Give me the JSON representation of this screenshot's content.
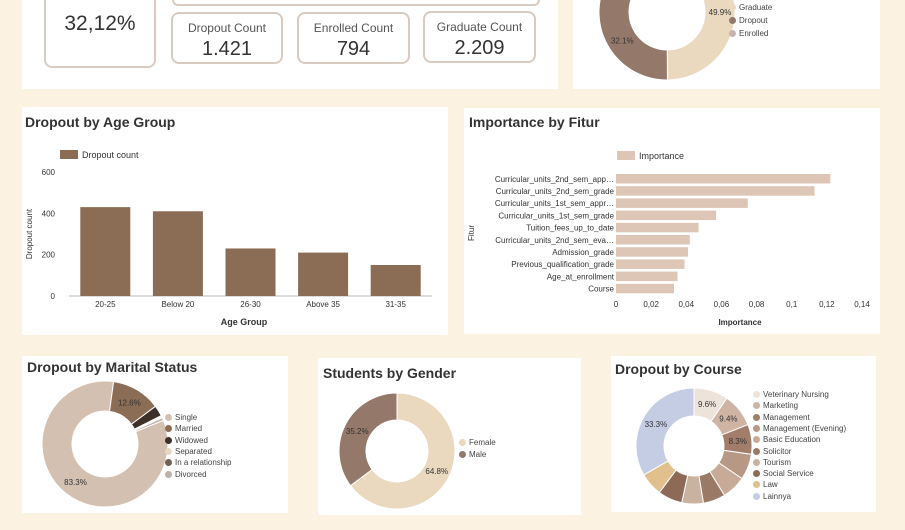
{
  "kpis": {
    "dropout_rate": "32,12%",
    "dropout_count": {
      "label": "Dropout Count",
      "value": "1.421"
    },
    "enrolled_count": {
      "label": "Enrolled Count",
      "value": "794"
    },
    "graduate_count": {
      "label": "Graduate Count",
      "value": "2.209"
    }
  },
  "chart_data": [
    {
      "type": "pie",
      "id": "status",
      "title": "",
      "labels": [
        "Graduate",
        "Dropout",
        "Enrolled"
      ],
      "values": [
        49.9,
        32.1,
        18.0
      ],
      "data_labels": [
        "49.9%",
        "32.1%",
        ""
      ],
      "colors": [
        "#ead8bf",
        "#947869",
        "#c7b4b0"
      ]
    },
    {
      "type": "bar",
      "id": "age",
      "title": "Dropout by Age Group",
      "legend": "Dropout count",
      "categories": [
        "20-25",
        "Below 20",
        "26-30",
        "Above 35",
        "31-35"
      ],
      "values": [
        430,
        410,
        230,
        210,
        150
      ],
      "xlabel": "Age Group",
      "ylabel": "Dropout count",
      "yticks": [
        "0",
        "200",
        "400",
        "600"
      ],
      "ylim": [
        0,
        600
      ],
      "color": "#8b6c55"
    },
    {
      "type": "bar",
      "id": "fitur",
      "orientation": "horizontal",
      "title": "Importance by Fitur",
      "legend": "Importance",
      "categories": [
        "Curricular_units_2nd_sem_app…",
        "Curricular_units_2nd_sem_grade",
        "Curricular_units_1st_sem_appr…",
        "Curricular_units_1st_sem_grade",
        "Tuition_fees_up_to_date",
        "Curricular_units_2nd_sem_eva…",
        "Admission_grade",
        "Previous_qualification_grade",
        "Age_at_enrollment",
        "Course"
      ],
      "values": [
        0.122,
        0.113,
        0.075,
        0.057,
        0.047,
        0.042,
        0.041,
        0.039,
        0.035,
        0.033
      ],
      "xlabel": "Importance",
      "ylabel": "Fitur",
      "xticks": [
        "0",
        "0,02",
        "0,04",
        "0,06",
        "0,08",
        "0,1",
        "0,12",
        "0,14"
      ],
      "xlim": [
        0,
        0.14
      ],
      "color": "#ddc6b6"
    },
    {
      "type": "pie",
      "id": "marital",
      "title": "Dropout by Marital Status",
      "labels": [
        "Single",
        "Married",
        "Widowed",
        "Separated",
        "In a relationship",
        "Divorced"
      ],
      "values": [
        83.3,
        12.6,
        2.8,
        0.3,
        0.3,
        0.7
      ],
      "data_labels": [
        "83.3%",
        "12.6%",
        "",
        "",
        "",
        ""
      ],
      "colors": [
        "#d3c0b1",
        "#8b6c55",
        "#3d3029",
        "#e8d7c6",
        "#6e6256",
        "#bfb0a8"
      ]
    },
    {
      "type": "pie",
      "id": "gender",
      "title": "Students by Gender",
      "labels": [
        "Female",
        "Male"
      ],
      "values": [
        64.8,
        35.2
      ],
      "data_labels": [
        "64.8%",
        "35.2%"
      ],
      "colors": [
        "#ead8bf",
        "#947869"
      ]
    },
    {
      "type": "pie",
      "id": "course",
      "title": "Dropout by Course",
      "labels": [
        "Veterinary Nursing",
        "Marketing",
        "Management",
        "Management (Evening)",
        "Basic Education",
        "Solicitor",
        "Tourism",
        "Social Service",
        "Law",
        "Lainnya"
      ],
      "values": [
        9.6,
        9.4,
        8.3,
        7.2,
        6.7,
        6.2,
        6.0,
        6.8,
        6.5,
        33.3
      ],
      "data_labels": [
        "9.6%",
        "9.4%",
        "8.3%",
        "",
        "",
        "",
        "",
        "",
        "",
        "33.3%"
      ],
      "colors": [
        "#ede3db",
        "#cfb3a3",
        "#a17d6a",
        "#b79885",
        "#c7ab98",
        "#9a7a67",
        "#c9b2a0",
        "#8c6a55",
        "#e1c08e",
        "#c5cde5"
      ]
    }
  ]
}
